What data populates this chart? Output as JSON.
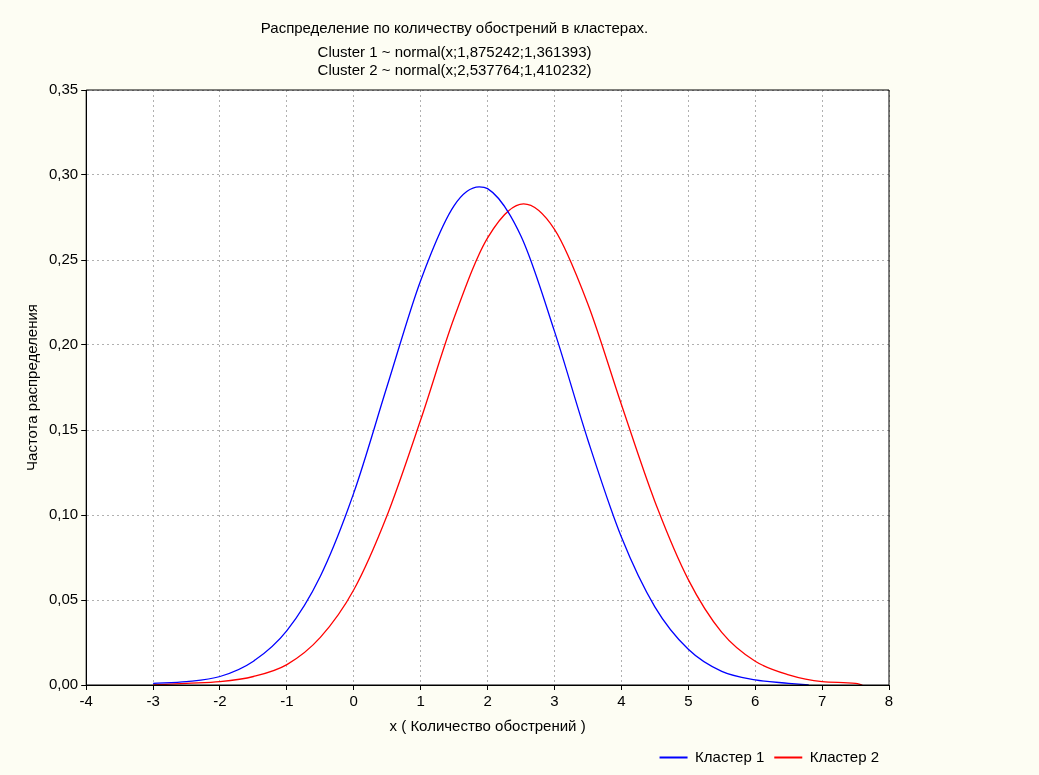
{
  "chart_data": {
    "type": "line",
    "title": "Распределение по количеству обострений в кластерах.",
    "subtitle": "Cluster 1 ~ normal(x;1,875242;1,361393)\nCluster 2 ~ normal(x;2,537764;1,410232)",
    "xlabel": "x ( Количество обострений )",
    "ylabel": "Частота распределения",
    "series": [
      {
        "name": "Кластер 1",
        "color": "#0000ff",
        "x": [
          -3,
          -2.5,
          -2,
          -1.5,
          -1,
          -0.5,
          0,
          0.5,
          1,
          1.5,
          1.875,
          2,
          2.5,
          3,
          3.5,
          4,
          4.5,
          5,
          5.5,
          6,
          6.5,
          6.8
        ],
        "values": [
          0.001,
          0.002,
          0.005,
          0.014,
          0.032,
          0.064,
          0.113,
          0.176,
          0.238,
          0.282,
          0.293,
          0.292,
          0.264,
          0.208,
          0.144,
          0.087,
          0.046,
          0.021,
          0.008,
          0.003,
          0.001,
          0.0
        ]
      },
      {
        "name": "Кластер 2",
        "color": "#ff0000",
        "x": [
          -3,
          -2.5,
          -2,
          -1.5,
          -1,
          -0.5,
          0,
          0.5,
          1,
          1.5,
          2,
          2.538,
          3,
          3.5,
          4,
          4.5,
          5,
          5.5,
          6,
          6.5,
          7,
          7.5,
          7.6
        ],
        "values": [
          0.0,
          0.001,
          0.002,
          0.005,
          0.012,
          0.028,
          0.056,
          0.1,
          0.156,
          0.216,
          0.263,
          0.283,
          0.268,
          0.224,
          0.165,
          0.108,
          0.062,
          0.031,
          0.014,
          0.006,
          0.002,
          0.001,
          0.0
        ]
      }
    ],
    "xlim": [
      -4,
      8
    ],
    "xticks": [
      -4,
      -3,
      -2,
      -1,
      0,
      1,
      2,
      3,
      4,
      5,
      6,
      7,
      8
    ],
    "ylim": [
      0,
      0.35
    ],
    "yticks": [
      {
        "value": 0,
        "label": "0,00"
      },
      {
        "value": 0.05,
        "label": "0,05"
      },
      {
        "value": 0.1,
        "label": "0,10"
      },
      {
        "value": 0.15,
        "label": "0,15"
      },
      {
        "value": 0.2,
        "label": "0,20"
      },
      {
        "value": 0.25,
        "label": "0,25"
      },
      {
        "value": 0.3,
        "label": "0,30"
      },
      {
        "value": 0.35,
        "label": "0,35"
      }
    ],
    "grid": true,
    "legend": "bottom right",
    "marker": "none",
    "line_style": "solid"
  }
}
